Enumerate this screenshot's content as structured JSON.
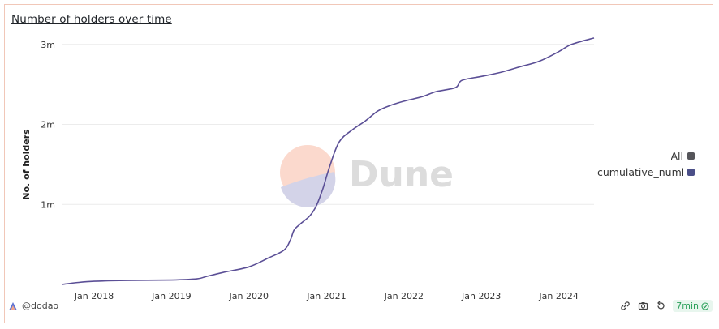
{
  "title": "Number of holders over time",
  "user": "@dodao",
  "refresh_badge": "7min",
  "icons": [
    "dune-logo-icon",
    "share-icon",
    "camera-icon",
    "refresh-icon",
    "check-circle-icon"
  ],
  "watermark": "Dune",
  "colors": {
    "line": "#5b4f96",
    "all_swatch": "#55555a",
    "series_swatch": "#4b4f88",
    "badge": "#2aa05a",
    "border": "#f1c7b8"
  },
  "legend": [
    {
      "label": "All",
      "color": "#55555a"
    },
    {
      "label": "cumulative_numbe",
      "color": "#4b4f88"
    }
  ],
  "chart_data": {
    "type": "line",
    "title": "Number of holders over time",
    "ylabel": "No. of holders",
    "xlabel": "",
    "xlim": [
      "2017-08-01",
      "2024-06-15"
    ],
    "ylim": [
      0,
      3150000
    ],
    "yticks": [
      1000000,
      2000000,
      3000000
    ],
    "ytick_labels": [
      "1m",
      "2m",
      "3m"
    ],
    "xticks": [
      "2018-01-01",
      "2019-01-01",
      "2020-01-01",
      "2021-01-01",
      "2022-01-01",
      "2023-01-01",
      "2024-01-01"
    ],
    "xtick_labels": [
      "Jan 2018",
      "Jan 2019",
      "Jan 2020",
      "Jan 2021",
      "Jan 2022",
      "Jan 2023",
      "Jan 2024"
    ],
    "grid": true,
    "legend_position": "right",
    "series": [
      {
        "name": "cumulative_numbe",
        "points": [
          [
            "2017-08-01",
            0
          ],
          [
            "2017-10-01",
            20000
          ],
          [
            "2018-01-01",
            40000
          ],
          [
            "2018-06-01",
            50000
          ],
          [
            "2019-01-01",
            55000
          ],
          [
            "2019-05-01",
            70000
          ],
          [
            "2019-06-15",
            100000
          ],
          [
            "2019-09-01",
            150000
          ],
          [
            "2020-01-01",
            220000
          ],
          [
            "2020-04-01",
            330000
          ],
          [
            "2020-06-15",
            430000
          ],
          [
            "2020-07-15",
            560000
          ],
          [
            "2020-08-01",
            680000
          ],
          [
            "2020-09-01",
            760000
          ],
          [
            "2020-10-15",
            860000
          ],
          [
            "2020-11-15",
            990000
          ],
          [
            "2020-12-15",
            1200000
          ],
          [
            "2021-01-15",
            1470000
          ],
          [
            "2021-03-01",
            1780000
          ],
          [
            "2021-05-01",
            1930000
          ],
          [
            "2021-07-01",
            2040000
          ],
          [
            "2021-09-01",
            2170000
          ],
          [
            "2021-11-01",
            2240000
          ],
          [
            "2022-01-01",
            2290000
          ],
          [
            "2022-04-01",
            2350000
          ],
          [
            "2022-06-01",
            2410000
          ],
          [
            "2022-09-01",
            2460000
          ],
          [
            "2022-10-01",
            2550000
          ],
          [
            "2023-01-01",
            2600000
          ],
          [
            "2023-04-01",
            2650000
          ],
          [
            "2023-07-01",
            2720000
          ],
          [
            "2023-10-01",
            2790000
          ],
          [
            "2024-01-01",
            2910000
          ],
          [
            "2024-03-01",
            3000000
          ],
          [
            "2024-06-15",
            3080000
          ]
        ]
      }
    ]
  }
}
